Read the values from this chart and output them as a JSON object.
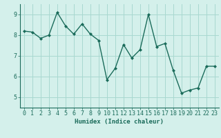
{
  "x": [
    0,
    1,
    2,
    3,
    4,
    5,
    6,
    7,
    8,
    9,
    10,
    11,
    12,
    13,
    14,
    15,
    16,
    17,
    18,
    19,
    20,
    21,
    22,
    23
  ],
  "y": [
    8.2,
    8.15,
    7.85,
    8.0,
    9.1,
    8.45,
    8.05,
    8.55,
    8.05,
    7.75,
    5.85,
    6.4,
    7.55,
    6.9,
    7.3,
    9.0,
    7.45,
    7.6,
    6.3,
    5.2,
    5.35,
    5.45,
    6.5,
    6.5
  ],
  "line_color": "#1a6b5a",
  "marker": "D",
  "marker_size": 2.0,
  "bg_color": "#d4f0eb",
  "grid_color": "#a8d8d0",
  "xlabel": "Humidex (Indice chaleur)",
  "xlim": [
    -0.5,
    23.5
  ],
  "ylim": [
    4.5,
    9.5
  ],
  "yticks": [
    5,
    6,
    7,
    8,
    9
  ],
  "xticks": [
    0,
    1,
    2,
    3,
    4,
    5,
    6,
    7,
    8,
    9,
    10,
    11,
    12,
    13,
    14,
    15,
    16,
    17,
    18,
    19,
    20,
    21,
    22,
    23
  ],
  "xlabel_fontsize": 6.5,
  "tick_fontsize": 6.0,
  "line_width": 1.0
}
